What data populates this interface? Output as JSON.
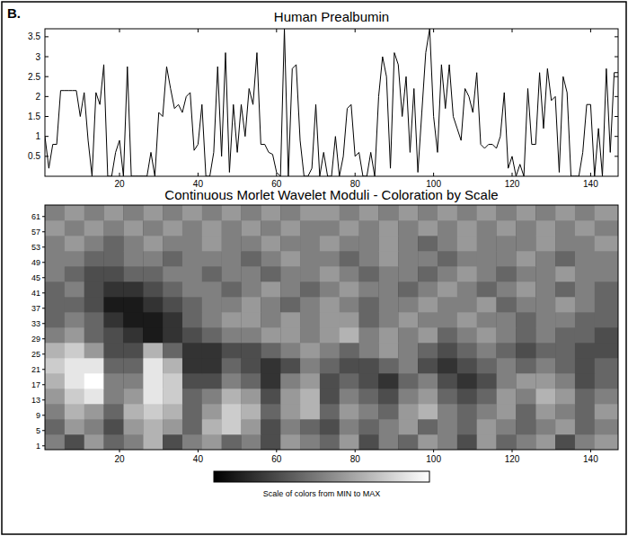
{
  "panel": "B.",
  "chart_data": [
    {
      "type": "line",
      "title": "Human Prealbumin",
      "color": "#000000",
      "x": [
        1,
        2,
        3,
        4,
        5,
        6,
        7,
        8,
        9,
        10,
        11,
        12,
        13,
        14,
        15,
        16,
        17,
        18,
        19,
        20,
        21,
        22,
        23,
        24,
        25,
        26,
        27,
        28,
        29,
        30,
        31,
        32,
        33,
        34,
        35,
        36,
        37,
        38,
        39,
        40,
        41,
        42,
        43,
        44,
        45,
        46,
        47,
        48,
        49,
        50,
        51,
        52,
        53,
        54,
        55,
        56,
        57,
        58,
        59,
        60,
        61,
        62,
        63,
        64,
        65,
        66,
        67,
        68,
        69,
        70,
        71,
        72,
        73,
        74,
        75,
        76,
        77,
        78,
        79,
        80,
        81,
        82,
        83,
        84,
        85,
        86,
        87,
        88,
        89,
        90,
        91,
        92,
        93,
        94,
        95,
        96,
        97,
        98,
        99,
        100,
        101,
        102,
        103,
        104,
        105,
        106,
        107,
        108,
        109,
        110,
        111,
        112,
        113,
        114,
        115,
        116,
        117,
        118,
        119,
        120,
        121,
        122,
        123,
        124,
        125,
        126,
        127,
        128,
        129,
        130,
        131,
        132,
        133,
        134,
        135,
        136,
        137,
        138,
        139,
        140,
        141,
        142,
        143,
        144,
        145,
        146,
        147
      ],
      "values": [
        1.0,
        0.2,
        0.8,
        0.8,
        2.15,
        2.15,
        2.15,
        2.15,
        2.15,
        1.5,
        2.1,
        0.9,
        0,
        2.1,
        1.8,
        2.8,
        0,
        0,
        0.6,
        0.9,
        0,
        2.75,
        0,
        0,
        0,
        0,
        0,
        0.6,
        0,
        1.6,
        1.5,
        2.75,
        2.2,
        1.7,
        1.8,
        1.6,
        2.0,
        2.1,
        0.65,
        0.8,
        1.8,
        0,
        0,
        0.6,
        2.75,
        0.5,
        3.1,
        0.1,
        1.8,
        0.6,
        1.8,
        1.0,
        2.2,
        1.8,
        3.1,
        0.8,
        0.8,
        0.6,
        0.55,
        0.1,
        0,
        3.7,
        0,
        2.7,
        2.8,
        0.9,
        0,
        0,
        0.2,
        1.8,
        0,
        0.6,
        0,
        0,
        1.0,
        0,
        0.5,
        1.7,
        1.8,
        0.5,
        0.6,
        0,
        0,
        0.6,
        0,
        2.0,
        3.0,
        2.5,
        0.2,
        3.1,
        2.8,
        1.5,
        2.5,
        0.6,
        2.2,
        0.1,
        1.6,
        3.1,
        3.7,
        1.5,
        0.6,
        2.8,
        1.7,
        2.8,
        1.5,
        1.2,
        0.9,
        2.2,
        2.0,
        1.6,
        2.6,
        0.8,
        0.7,
        0.8,
        0.8,
        0.7,
        1.0,
        2.1,
        0.2,
        0.5,
        0,
        0.3,
        0,
        2.2,
        0.8,
        0.8,
        2.6,
        1.2,
        2.7,
        1.9,
        2.0,
        0.1,
        2.5,
        2.1,
        0,
        0,
        0,
        0.6,
        1.8,
        1.8,
        0,
        1.2,
        0,
        2.7,
        0.6,
        2.6,
        2.6
      ],
      "xlim": [
        1,
        147
      ],
      "ylim": [
        0,
        3.7
      ],
      "xticks": [
        20,
        40,
        60,
        80,
        100,
        120,
        140
      ],
      "yticks": [
        0.5,
        1,
        1.5,
        2,
        2.5,
        3,
        3.5
      ],
      "grid": false
    },
    {
      "type": "heatmap",
      "title": "Continuous Morlet Wavelet Moduli - Coloration by Scale",
      "xlim": [
        1,
        147
      ],
      "ylim": [
        0,
        64
      ],
      "xticks": [
        20,
        40,
        60,
        80,
        100,
        120,
        140
      ],
      "yticks": [
        1,
        5,
        9,
        13,
        17,
        21,
        25,
        29,
        33,
        37,
        41,
        45,
        49,
        53,
        57,
        61
      ],
      "x_bins": [
        1,
        6,
        11,
        16,
        21,
        26,
        31,
        36,
        41,
        46,
        51,
        56,
        61,
        66,
        71,
        76,
        81,
        86,
        91,
        96,
        101,
        106,
        111,
        116,
        121,
        126,
        131,
        136,
        141,
        147
      ],
      "y_bins": [
        0,
        4,
        8,
        12,
        16,
        20,
        24,
        28,
        32,
        36,
        40,
        44,
        48,
        52,
        56,
        60,
        64
      ],
      "cells": [
        [
          0.5,
          0.3,
          0.6,
          0.4,
          0.5,
          0.7,
          0.3,
          0.5,
          0.6,
          0.4,
          0.5,
          0.3,
          0.6,
          0.5,
          0.4,
          0.6,
          0.3,
          0.5,
          0.4,
          0.6,
          0.5,
          0.3,
          0.6,
          0.4,
          0.5,
          0.6,
          0.3,
          0.5,
          0.6
        ],
        [
          0.4,
          0.6,
          0.5,
          0.3,
          0.6,
          0.7,
          0.6,
          0.4,
          0.7,
          0.8,
          0.6,
          0.3,
          0.5,
          0.4,
          0.3,
          0.5,
          0.4,
          0.5,
          0.6,
          0.4,
          0.5,
          0.4,
          0.6,
          0.5,
          0.4,
          0.5,
          0.6,
          0.4,
          0.5
        ],
        [
          0.5,
          0.7,
          0.6,
          0.4,
          0.7,
          0.8,
          0.7,
          0.4,
          0.6,
          0.8,
          0.7,
          0.4,
          0.6,
          0.7,
          0.4,
          0.6,
          0.5,
          0.4,
          0.6,
          0.7,
          0.5,
          0.4,
          0.5,
          0.6,
          0.4,
          0.6,
          0.5,
          0.4,
          0.6
        ],
        [
          0.6,
          0.8,
          0.9,
          0.5,
          0.6,
          0.9,
          0.8,
          0.4,
          0.5,
          0.7,
          0.6,
          0.3,
          0.6,
          0.7,
          0.3,
          0.5,
          0.4,
          0.3,
          0.5,
          0.6,
          0.4,
          0.3,
          0.4,
          0.6,
          0.5,
          0.7,
          0.6,
          0.4,
          0.5
        ],
        [
          0.7,
          0.9,
          1.0,
          0.5,
          0.5,
          0.9,
          0.8,
          0.3,
          0.3,
          0.5,
          0.4,
          0.2,
          0.5,
          0.6,
          0.3,
          0.4,
          0.3,
          0.2,
          0.4,
          0.5,
          0.3,
          0.2,
          0.3,
          0.5,
          0.6,
          0.6,
          0.5,
          0.3,
          0.4
        ],
        [
          0.8,
          0.9,
          0.9,
          0.4,
          0.4,
          0.9,
          0.7,
          0.2,
          0.2,
          0.4,
          0.3,
          0.2,
          0.3,
          0.5,
          0.4,
          0.3,
          0.3,
          0.4,
          0.5,
          0.3,
          0.2,
          0.3,
          0.4,
          0.5,
          0.4,
          0.5,
          0.4,
          0.3,
          0.4
        ],
        [
          0.7,
          0.8,
          0.6,
          0.3,
          0.3,
          0.7,
          0.4,
          0.2,
          0.2,
          0.3,
          0.3,
          0.4,
          0.5,
          0.6,
          0.5,
          0.4,
          0.5,
          0.6,
          0.5,
          0.4,
          0.3,
          0.4,
          0.5,
          0.4,
          0.3,
          0.4,
          0.4,
          0.3,
          0.3
        ],
        [
          0.5,
          0.6,
          0.4,
          0.3,
          0.2,
          0.1,
          0.2,
          0.3,
          0.4,
          0.5,
          0.5,
          0.6,
          0.6,
          0.5,
          0.6,
          0.7,
          0.5,
          0.6,
          0.5,
          0.6,
          0.4,
          0.5,
          0.6,
          0.5,
          0.4,
          0.5,
          0.4,
          0.4,
          0.3
        ],
        [
          0.4,
          0.5,
          0.4,
          0.2,
          0.1,
          0.1,
          0.2,
          0.4,
          0.5,
          0.6,
          0.6,
          0.5,
          0.6,
          0.5,
          0.6,
          0.6,
          0.4,
          0.5,
          0.6,
          0.5,
          0.5,
          0.6,
          0.5,
          0.5,
          0.4,
          0.5,
          0.5,
          0.4,
          0.4
        ],
        [
          0.4,
          0.4,
          0.3,
          0.1,
          0.1,
          0.2,
          0.3,
          0.4,
          0.5,
          0.5,
          0.6,
          0.5,
          0.4,
          0.5,
          0.6,
          0.5,
          0.4,
          0.5,
          0.5,
          0.6,
          0.5,
          0.5,
          0.6,
          0.4,
          0.5,
          0.5,
          0.6,
          0.5,
          0.4
        ],
        [
          0.4,
          0.5,
          0.3,
          0.2,
          0.2,
          0.3,
          0.4,
          0.5,
          0.5,
          0.4,
          0.5,
          0.6,
          0.5,
          0.4,
          0.5,
          0.6,
          0.5,
          0.5,
          0.4,
          0.5,
          0.6,
          0.5,
          0.4,
          0.5,
          0.6,
          0.5,
          0.4,
          0.5,
          0.4
        ],
        [
          0.5,
          0.4,
          0.3,
          0.3,
          0.4,
          0.4,
          0.5,
          0.5,
          0.4,
          0.5,
          0.5,
          0.4,
          0.5,
          0.5,
          0.6,
          0.5,
          0.4,
          0.5,
          0.5,
          0.4,
          0.5,
          0.6,
          0.5,
          0.4,
          0.5,
          0.5,
          0.6,
          0.5,
          0.5
        ],
        [
          0.5,
          0.5,
          0.4,
          0.4,
          0.5,
          0.5,
          0.4,
          0.5,
          0.5,
          0.5,
          0.4,
          0.5,
          0.6,
          0.5,
          0.5,
          0.4,
          0.5,
          0.6,
          0.5,
          0.5,
          0.4,
          0.5,
          0.5,
          0.5,
          0.6,
          0.5,
          0.4,
          0.5,
          0.5
        ],
        [
          0.5,
          0.6,
          0.5,
          0.4,
          0.5,
          0.6,
          0.5,
          0.5,
          0.6,
          0.5,
          0.5,
          0.6,
          0.5,
          0.5,
          0.6,
          0.5,
          0.5,
          0.6,
          0.5,
          0.4,
          0.5,
          0.6,
          0.5,
          0.5,
          0.5,
          0.6,
          0.5,
          0.5,
          0.6
        ],
        [
          0.6,
          0.5,
          0.6,
          0.5,
          0.6,
          0.5,
          0.6,
          0.5,
          0.6,
          0.5,
          0.6,
          0.5,
          0.6,
          0.5,
          0.5,
          0.6,
          0.5,
          0.6,
          0.5,
          0.6,
          0.5,
          0.6,
          0.5,
          0.6,
          0.5,
          0.6,
          0.5,
          0.6,
          0.5
        ],
        [
          0.5,
          0.6,
          0.5,
          0.6,
          0.5,
          0.6,
          0.5,
          0.6,
          0.5,
          0.6,
          0.5,
          0.6,
          0.5,
          0.6,
          0.6,
          0.5,
          0.6,
          0.5,
          0.6,
          0.5,
          0.6,
          0.5,
          0.6,
          0.5,
          0.6,
          0.5,
          0.6,
          0.5,
          0.6
        ]
      ],
      "color_bar": {
        "range": [
          0,
          1
        ],
        "label": "Scale of colors from MIN to MAX"
      }
    }
  ]
}
